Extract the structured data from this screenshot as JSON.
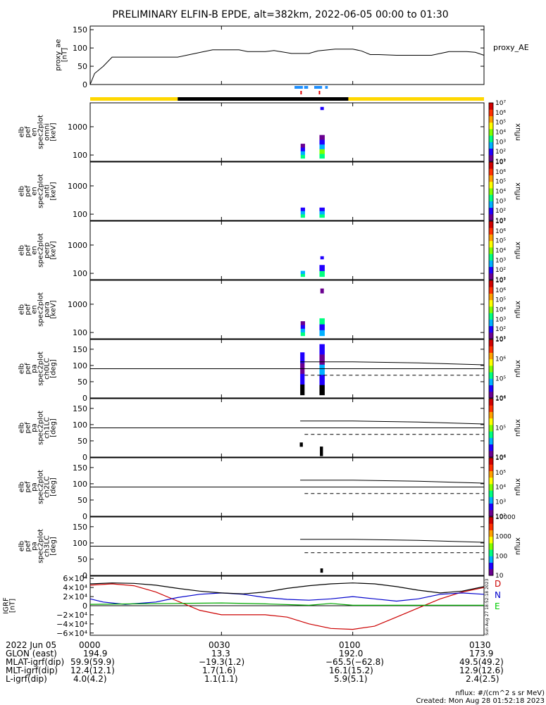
{
  "title": "PRELIMINARY ELFIN-B EPDE, alt=382km, 2022-06-05 00:00 to 01:30",
  "chart_data": [
    {
      "type": "line",
      "panel": "proxy_ae",
      "ylabel": [
        "proxy_ae",
        "[nT]"
      ],
      "yticks": [
        0,
        50,
        100,
        150
      ],
      "ylim": [
        0,
        160
      ],
      "xlim_min": [
        0,
        90
      ],
      "side_label": "proxy_AE",
      "series": [
        {
          "x": [
            0,
            1,
            3,
            5,
            20,
            22,
            24,
            26,
            28,
            30,
            34,
            36,
            38,
            40,
            42,
            46,
            48,
            50,
            52,
            56,
            58,
            60,
            62,
            64,
            66,
            70,
            74,
            78,
            80,
            82,
            84,
            86,
            88,
            90
          ],
          "y": [
            0,
            30,
            50,
            75,
            75,
            80,
            85,
            90,
            95,
            95,
            95,
            90,
            90,
            90,
            93,
            85,
            85,
            85,
            92,
            97,
            97,
            97,
            92,
            82,
            82,
            80,
            80,
            80,
            85,
            90,
            90,
            90,
            88,
            80
          ]
        }
      ]
    },
    {
      "type": "heatmap",
      "panel": "energy-omni",
      "ylabel": [
        "elb",
        "pef",
        "en",
        "spec2plot",
        "omni",
        "[keV]"
      ],
      "yticks": [
        100,
        1000
      ],
      "ylim": [
        60,
        7000
      ],
      "yscale": "log",
      "colorbar": {
        "label": "nflux",
        "ticks": [
          "10¹",
          "10²",
          "10³",
          "10⁴",
          "10⁵",
          "10⁶",
          "10⁷"
        ]
      }
    },
    {
      "type": "heatmap",
      "panel": "energy-anti",
      "ylabel": [
        "elb",
        "pef",
        "en",
        "spec2plot",
        "anti",
        "[keV]"
      ],
      "yticks": [
        100,
        1000
      ],
      "ylim": [
        60,
        7000
      ],
      "yscale": "log",
      "colorbar": {
        "label": "nflux",
        "ticks": [
          "10¹",
          "10²",
          "10³",
          "10⁴",
          "10⁵",
          "10⁶",
          "10⁷"
        ]
      }
    },
    {
      "type": "heatmap",
      "panel": "energy-perp",
      "ylabel": [
        "elb",
        "pef",
        "en",
        "spec2plot",
        "perp",
        "[keV]"
      ],
      "yticks": [
        100,
        1000
      ],
      "ylim": [
        60,
        7000
      ],
      "yscale": "log",
      "colorbar": {
        "label": "nflux",
        "ticks": [
          "10¹",
          "10²",
          "10³",
          "10⁴",
          "10⁵",
          "10⁶",
          "10⁷"
        ]
      }
    },
    {
      "type": "heatmap",
      "panel": "energy-para",
      "ylabel": [
        "elb",
        "pef",
        "en",
        "spec2plot",
        "para",
        "[keV]"
      ],
      "yticks": [
        100,
        1000
      ],
      "ylim": [
        60,
        7000
      ],
      "yscale": "log",
      "colorbar": {
        "label": "nflux",
        "ticks": [
          "10¹",
          "10²",
          "10³",
          "10⁴",
          "10⁵",
          "10⁶",
          "10⁷"
        ]
      }
    },
    {
      "type": "heatmap",
      "panel": "pa-ch0",
      "ylabel": [
        "elb",
        "pef",
        "pa",
        "spec2plot",
        "ch0LC",
        "[deg]"
      ],
      "yticks": [
        0,
        50,
        100,
        150
      ],
      "ylim": [
        0,
        180
      ],
      "colorbar": {
        "label": "nflux",
        "ticks": [
          "10⁴",
          "10⁵",
          "10⁶",
          "10⁷"
        ]
      }
    },
    {
      "type": "heatmap",
      "panel": "pa-ch1",
      "ylabel": [
        "elb",
        "pef",
        "pa",
        "spec2plot",
        "ch1LC",
        "[deg]"
      ],
      "yticks": [
        0,
        50,
        100,
        150
      ],
      "ylim": [
        0,
        180
      ],
      "colorbar": {
        "label": "nflux",
        "ticks": [
          "10⁴",
          "10⁵",
          "10⁶"
        ]
      }
    },
    {
      "type": "heatmap",
      "panel": "pa-ch2",
      "ylabel": [
        "elb",
        "pef",
        "pa",
        "spec2plot",
        "ch2LC",
        "[deg]"
      ],
      "yticks": [
        0,
        50,
        100,
        150
      ],
      "ylim": [
        0,
        180
      ],
      "colorbar": {
        "label": "nflux",
        "ticks": [
          "10²",
          "10³",
          "10⁴",
          "10⁵",
          "10⁶"
        ]
      }
    },
    {
      "type": "heatmap",
      "panel": "pa-ch3",
      "ylabel": [
        "elb",
        "pef",
        "pa",
        "spec2plot",
        "ch3LC",
        "[deg]"
      ],
      "yticks": [
        0,
        50,
        100,
        150
      ],
      "ylim": [
        0,
        180
      ],
      "colorbar": {
        "label": "nflux",
        "ticks": [
          "10",
          "100",
          "1000",
          "10000"
        ]
      }
    },
    {
      "type": "line",
      "panel": "igrf",
      "ylabel": [
        "IGRF",
        "[nT]"
      ],
      "yticks": [
        "6×10⁴",
        "4×10⁴",
        "2×10⁴",
        "0",
        "−2×10⁴",
        "−4×10⁴",
        "−6×10⁴"
      ],
      "ylim": [
        -65000,
        65000
      ],
      "legend": [
        {
          "name": "D",
          "color": "#cc0000"
        },
        {
          "name": "N",
          "color": "#0000cc"
        },
        {
          "name": "E",
          "color": "#00cc00"
        }
      ],
      "series": [
        {
          "name": "D",
          "color": "#cc0000",
          "x": [
            0,
            5,
            10,
            15,
            20,
            25,
            30,
            35,
            40,
            45,
            50,
            55,
            60,
            65,
            70,
            75,
            80,
            85,
            90
          ],
          "y": [
            45000,
            48000,
            44000,
            30000,
            10000,
            -10000,
            -20000,
            -20000,
            -20000,
            -25000,
            -40000,
            -50000,
            -52000,
            -45000,
            -25000,
            -5000,
            15000,
            30000,
            40000
          ]
        },
        {
          "name": "N",
          "color": "#0000cc",
          "x": [
            0,
            3,
            8,
            15,
            20,
            25,
            30,
            35,
            40,
            45,
            50,
            55,
            60,
            65,
            70,
            75,
            80,
            85,
            90
          ],
          "y": [
            15000,
            8000,
            3000,
            8000,
            18000,
            25000,
            28000,
            25000,
            18000,
            14000,
            12000,
            15000,
            20000,
            15000,
            10000,
            15000,
            25000,
            28000,
            25000
          ]
        },
        {
          "name": "",
          "color": "#000000",
          "x": [
            0,
            5,
            10,
            15,
            20,
            25,
            30,
            35,
            40,
            45,
            50,
            55,
            60,
            65,
            70,
            75,
            80,
            85,
            90
          ],
          "y": [
            48000,
            50000,
            49000,
            45000,
            38000,
            32000,
            28000,
            26000,
            30000,
            38000,
            44000,
            48000,
            50000,
            48000,
            42000,
            34000,
            28000,
            32000,
            42000
          ]
        },
        {
          "name": "",
          "color": "#00aa00",
          "x": [
            0,
            10,
            20,
            30,
            40,
            50,
            55,
            60,
            70,
            80,
            90
          ],
          "y": [
            3000,
            4000,
            5000,
            6000,
            4000,
            1000,
            5000,
            1000,
            1000,
            1000,
            1000
          ]
        }
      ]
    }
  ],
  "time_axis": [
    "2022 Jun 05",
    "0000",
    "0030",
    "0100",
    "0130"
  ],
  "orbit_rows": [
    {
      "label": "GLON (east)",
      "values": [
        "194.9",
        "13.3",
        "192.0",
        "173.9"
      ]
    },
    {
      "label": "MLAT-igrf(dip)",
      "values": [
        "59.9(59.9)",
        "−19.3(1.2)",
        "−65.5(−62.8)",
        "49.5(49.2)"
      ]
    },
    {
      "label": "MLT-igrf(dip)",
      "values": [
        "12.4(12.1)",
        "1.7(1.6)",
        "16.1(15.2)",
        "12.9(12.6)"
      ]
    },
    {
      "label": "L-igrf(dip)",
      "values": [
        "4.0(4.2)",
        "1.1(1.1)",
        "5.9(5.1)",
        "2.4(2.5)"
      ]
    }
  ],
  "footer": {
    "units": "nflux: #/(cm^2 s sr MeV)",
    "created": "Created: Mon Aug 28 01:52:18 2023",
    "vertical_stamp": "Sun Aug 27 18:52:18 2023"
  }
}
